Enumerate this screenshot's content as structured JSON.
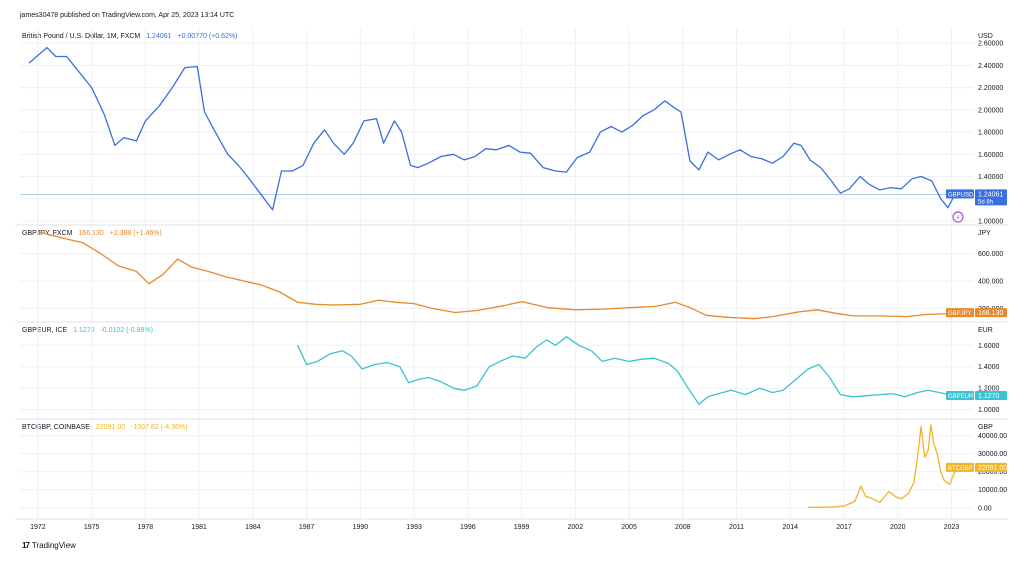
{
  "header": {
    "text": "james30478 published on TradingView.com, Apr 25, 2023 13:14 UTC"
  },
  "footer": {
    "logo": "17",
    "brand": "TradingView"
  },
  "time_axis": {
    "labels": [
      "1972",
      "1975",
      "1978",
      "1981",
      "1984",
      "1987",
      "1990",
      "1993",
      "1996",
      "1999",
      "2002",
      "2005",
      "2008",
      "2011",
      "2014",
      "2017",
      "2020",
      "2023"
    ]
  },
  "colors": {
    "gbpusd": "#3a6fe0",
    "gbpjpy": "#e8892b",
    "gbpeur": "#3cc2d0",
    "btcgbp": "#f0b429",
    "grid": "#eef0f3",
    "axis_text": "#131722"
  },
  "chart_data": [
    {
      "type": "line",
      "title": "British Pound / U.S. Dollar, 1M, FXCM",
      "last_value": "1.24061",
      "change": "+0.00770 (+0.62%)",
      "unit": "USD",
      "ylim": [
        1.0,
        2.7
      ],
      "ticks": [
        "2.60000",
        "2.40000",
        "2.20000",
        "2.00000",
        "1.80000",
        "1.60000",
        "1.40000",
        "1.20000",
        "1.00000"
      ],
      "tick_values": [
        2.6,
        2.4,
        2.2,
        2.0,
        1.8,
        1.6,
        1.4,
        1.2,
        1.0
      ],
      "badge": {
        "symbol": "GBPUSD",
        "value": "1.24061",
        "countdown": "5d 8h"
      },
      "x": [
        1971.5,
        1972.5,
        1973.0,
        1973.6,
        1974.2,
        1975.0,
        1975.7,
        1976.3,
        1976.8,
        1977.5,
        1978.0,
        1978.8,
        1979.5,
        1980.2,
        1980.9,
        1981.3,
        1981.9,
        1982.6,
        1983.2,
        1983.8,
        1984.4,
        1985.1,
        1985.6,
        1986.2,
        1986.8,
        1987.4,
        1988.0,
        1988.5,
        1989.1,
        1989.6,
        1990.2,
        1990.9,
        1991.3,
        1991.9,
        1992.3,
        1992.8,
        1993.2,
        1993.8,
        1994.5,
        1995.2,
        1995.8,
        1996.4,
        1997.0,
        1997.6,
        1998.3,
        1998.9,
        1999.5,
        2000.2,
        2000.9,
        2001.5,
        2002.1,
        2002.8,
        2003.4,
        2004.0,
        2004.6,
        2005.2,
        2005.8,
        2006.4,
        2007.0,
        2007.6,
        2007.9,
        2008.4,
        2008.9,
        2009.4,
        2010.0,
        2010.6,
        2011.2,
        2011.8,
        2012.4,
        2013.0,
        2013.6,
        2014.2,
        2014.6,
        2015.1,
        2015.7,
        2016.3,
        2016.8,
        2017.3,
        2017.9,
        2018.4,
        2019.0,
        2019.6,
        2020.2,
        2020.8,
        2021.3,
        2021.9,
        2022.4,
        2022.8,
        2023.2
      ],
      "y": [
        2.42,
        2.56,
        2.48,
        2.48,
        2.36,
        2.2,
        1.96,
        1.68,
        1.75,
        1.72,
        1.9,
        2.04,
        2.2,
        2.38,
        2.39,
        1.98,
        1.8,
        1.6,
        1.5,
        1.38,
        1.25,
        1.1,
        1.45,
        1.45,
        1.5,
        1.7,
        1.82,
        1.7,
        1.6,
        1.7,
        1.9,
        1.92,
        1.7,
        1.9,
        1.8,
        1.5,
        1.48,
        1.52,
        1.58,
        1.6,
        1.55,
        1.58,
        1.65,
        1.64,
        1.68,
        1.62,
        1.61,
        1.48,
        1.45,
        1.44,
        1.57,
        1.62,
        1.8,
        1.85,
        1.8,
        1.86,
        1.95,
        2.0,
        2.08,
        2.01,
        1.98,
        1.54,
        1.46,
        1.62,
        1.55,
        1.6,
        1.64,
        1.58,
        1.56,
        1.52,
        1.58,
        1.7,
        1.68,
        1.55,
        1.48,
        1.36,
        1.25,
        1.29,
        1.4,
        1.33,
        1.28,
        1.3,
        1.29,
        1.38,
        1.4,
        1.36,
        1.2,
        1.12,
        1.24
      ]
    },
    {
      "type": "line",
      "title": "GBPJPY, FXCM",
      "last_value": "166.130",
      "change": "+2.388 (+1.46%)",
      "unit": "JPY",
      "ylim": [
        130,
        780
      ],
      "ticks": [
        "600.000",
        "400.000",
        "200.000"
      ],
      "tick_values": [
        600,
        400,
        200
      ],
      "badge": {
        "symbol": "GBPJPY",
        "value": "166.130"
      },
      "x": [
        1972.0,
        1973.2,
        1974.5,
        1975.5,
        1976.5,
        1977.5,
        1978.2,
        1979.0,
        1979.8,
        1980.6,
        1981.5,
        1982.5,
        1983.5,
        1984.5,
        1985.5,
        1986.5,
        1987.5,
        1988.5,
        1990.0,
        1991.0,
        1992.0,
        1993.0,
        1994.0,
        1995.3,
        1996.5,
        1998.0,
        1999.0,
        2000.5,
        2002.0,
        2003.5,
        2005.0,
        2006.5,
        2007.6,
        2008.5,
        2009.3,
        2010.5,
        2012.0,
        2013.0,
        2014.5,
        2015.5,
        2016.5,
        2017.5,
        2019.0,
        2020.5,
        2021.5,
        2022.5,
        2023.2
      ],
      "y": [
        760,
        720,
        680,
        600,
        510,
        470,
        380,
        450,
        560,
        500,
        470,
        430,
        400,
        370,
        320,
        245,
        230,
        225,
        230,
        260,
        245,
        235,
        200,
        170,
        185,
        220,
        250,
        205,
        190,
        195,
        205,
        215,
        245,
        200,
        150,
        135,
        125,
        140,
        175,
        190,
        165,
        145,
        145,
        140,
        155,
        160,
        166
      ]
    },
    {
      "type": "line",
      "title": "GBPEUR, ICE",
      "last_value": "1.1270",
      "change": "-0.0102 (-0.89%)",
      "unit": "EUR",
      "ylim": [
        0.95,
        1.78
      ],
      "ticks": [
        "1.6000",
        "1.4000",
        "1.2000",
        "1.0000"
      ],
      "tick_values": [
        1.6,
        1.4,
        1.2,
        1.0
      ],
      "badge": {
        "symbol": "GBPEUR",
        "value": "1.1270"
      },
      "x": [
        1986.5,
        1987.0,
        1987.6,
        1988.3,
        1989.0,
        1989.5,
        1990.1,
        1990.8,
        1991.5,
        1992.2,
        1992.7,
        1993.2,
        1993.8,
        1994.5,
        1995.2,
        1995.8,
        1996.5,
        1997.2,
        1997.8,
        1998.5,
        1999.2,
        1999.8,
        2000.4,
        2000.9,
        2001.5,
        2002.2,
        2002.9,
        2003.5,
        2004.2,
        2005.0,
        2005.7,
        2006.4,
        2007.2,
        2007.7,
        2008.3,
        2008.9,
        2009.4,
        2010.0,
        2010.7,
        2011.5,
        2012.3,
        2013.0,
        2013.6,
        2014.3,
        2015.0,
        2015.6,
        2016.2,
        2016.8,
        2017.5,
        2018.3,
        2019.0,
        2019.7,
        2020.4,
        2021.1,
        2021.7,
        2022.3,
        2022.9,
        2023.3
      ],
      "y": [
        1.6,
        1.42,
        1.45,
        1.52,
        1.55,
        1.5,
        1.38,
        1.42,
        1.44,
        1.4,
        1.25,
        1.28,
        1.3,
        1.26,
        1.2,
        1.18,
        1.22,
        1.4,
        1.45,
        1.5,
        1.48,
        1.58,
        1.65,
        1.6,
        1.68,
        1.6,
        1.55,
        1.45,
        1.48,
        1.45,
        1.47,
        1.48,
        1.43,
        1.36,
        1.2,
        1.05,
        1.12,
        1.15,
        1.18,
        1.14,
        1.2,
        1.16,
        1.18,
        1.28,
        1.38,
        1.42,
        1.3,
        1.14,
        1.12,
        1.13,
        1.14,
        1.15,
        1.12,
        1.16,
        1.18,
        1.16,
        1.14,
        1.127
      ]
    },
    {
      "type": "line",
      "title": "BTCGBP, COINBASE",
      "last_value": "22091.00",
      "change": "-1007.82 (-4.36%)",
      "unit": "GBP",
      "ylim": [
        -4000,
        47000
      ],
      "ticks": [
        "40000.00",
        "30000.00",
        "20000.00",
        "10000.00",
        "0.00"
      ],
      "tick_values": [
        40000,
        30000,
        20000,
        10000,
        0
      ],
      "badge": {
        "symbol": "BTCGBP",
        "value": "22091.00"
      },
      "x": [
        2015.0,
        2015.8,
        2016.5,
        2017.0,
        2017.6,
        2017.95,
        2018.2,
        2018.6,
        2019.0,
        2019.5,
        2019.9,
        2020.2,
        2020.6,
        2020.9,
        2021.1,
        2021.3,
        2021.5,
        2021.7,
        2021.85,
        2022.0,
        2022.2,
        2022.4,
        2022.6,
        2022.9,
        2023.1,
        2023.3
      ],
      "y": [
        200,
        300,
        500,
        1000,
        3500,
        12000,
        6500,
        5000,
        3000,
        9000,
        6000,
        5000,
        8000,
        14000,
        28000,
        45000,
        28000,
        32000,
        46000,
        36000,
        30000,
        20000,
        15000,
        13000,
        18000,
        22091
      ]
    }
  ]
}
